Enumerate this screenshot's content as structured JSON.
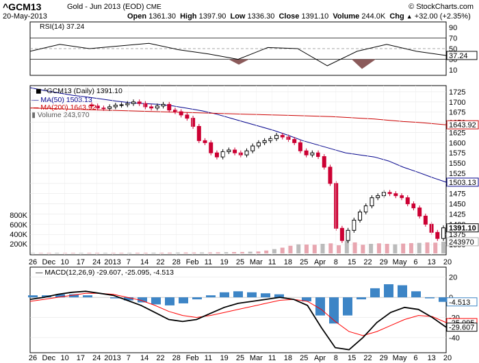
{
  "header": {
    "symbol": "^GCM13",
    "description": "Gold - Jun 2013 (EOD)",
    "exchange": "CME",
    "copyright": "© StockCharts.com",
    "date": "20-May-2013",
    "open_label": "Open",
    "open": "1361.30",
    "high_label": "High",
    "high": "1397.90",
    "low_label": "Low",
    "low": "1336.30",
    "close_label": "Close",
    "close": "1391.10",
    "volume_label": "Volume",
    "volume": "244.0K",
    "chg_label": "Chg",
    "chg": "+32.00 (+2.35%)",
    "chg_direction": "up"
  },
  "colors": {
    "up_candle": "#000000",
    "down_candle": "#cc0033",
    "ma50": "#00008b",
    "ma200": "#cc0000",
    "rsi_fill": "#8b5a5a",
    "macd_line": "#000000",
    "signal_line": "#ff0000",
    "histogram": "#3d85c6",
    "volume_up": "#bbbbbb",
    "volume_down": "#e8a6b0"
  },
  "chart_data": [
    {
      "type": "line",
      "panel": "rsi",
      "title": "RSI(14) 37.24",
      "levels": [
        10,
        30,
        50,
        70,
        90
      ],
      "ylim": [
        0,
        100
      ],
      "last_value_label": "37.24",
      "x": [
        "Nov 26",
        "Dec 10",
        "Dec 24",
        "Jan 14",
        "Jan 28",
        "Feb 11",
        "Feb 25",
        "Mar 11",
        "Mar 25",
        "Apr 8",
        "Apr 15",
        "Apr 22",
        "May 6",
        "May 13",
        "May 20"
      ],
      "values": [
        45,
        58,
        50,
        55,
        60,
        48,
        40,
        30,
        52,
        50,
        18,
        45,
        58,
        45,
        37.24
      ]
    },
    {
      "type": "candlestick",
      "panel": "price",
      "title": "^GCM13 (Daily) 1391.10",
      "ylim": [
        1325,
        1740
      ],
      "y_ticks": [
        1325,
        1350,
        1375,
        1400,
        1425,
        1450,
        1475,
        1500,
        1525,
        1550,
        1575,
        1600,
        1625,
        1650,
        1675,
        1700,
        1725
      ],
      "x_tick_labels": [
        "26",
        "Dec",
        "10",
        "17",
        "24",
        "2013",
        "7",
        "14",
        "22",
        "28",
        "Feb",
        "11",
        "19",
        "25",
        "Mar",
        "11",
        "18",
        "25",
        "Apr",
        "8",
        "15",
        "22",
        "29",
        "May",
        "6",
        "13",
        "20"
      ],
      "close_label": "1391.10",
      "ohlc_close": [
        1690,
        1685,
        1684,
        1688,
        1692,
        1693,
        1696,
        1700,
        1696,
        1688,
        1685,
        1690,
        1694,
        1680,
        1676,
        1668,
        1660,
        1640,
        1605,
        1600,
        1575,
        1565,
        1578,
        1582,
        1575,
        1570,
        1580,
        1592,
        1600,
        1605,
        1610,
        1618,
        1614,
        1608,
        1600,
        1580,
        1570,
        1575,
        1566,
        1540,
        1500,
        1390,
        1360,
        1385,
        1410,
        1430,
        1445,
        1465,
        1470,
        1478,
        1475,
        1470,
        1465,
        1450,
        1440,
        1420,
        1400,
        1380,
        1365,
        1391.1
      ],
      "series": [
        {
          "name": "MA(50) 1503.13",
          "last_label": "1503.13",
          "values": [
            1735,
            1728,
            1722,
            1716,
            1712,
            1707,
            1702,
            1698,
            1696,
            1694,
            1690,
            1684,
            1678,
            1670,
            1660,
            1650,
            1640,
            1630,
            1618,
            1605,
            1595,
            1585,
            1575,
            1570,
            1565,
            1555,
            1540,
            1528,
            1515,
            1503.13
          ]
        },
        {
          "name": "MA(200) 1643.92",
          "last_label": "1643.92",
          "values": [
            1685,
            1684,
            1683,
            1682,
            1681,
            1680,
            1679,
            1678,
            1677,
            1676,
            1675,
            1674,
            1673,
            1672,
            1671,
            1670,
            1669,
            1668,
            1667,
            1666,
            1665,
            1664,
            1662,
            1660,
            1658,
            1655,
            1652,
            1650,
            1647,
            1643.92
          ]
        }
      ]
    },
    {
      "type": "bar",
      "panel": "volume",
      "title": "Volume 243,970",
      "y_ticks_labels": [
        "200K",
        "400K",
        "600K",
        "800K"
      ],
      "y_ticks": [
        200000,
        400000,
        600000,
        800000
      ],
      "ylim": [
        0,
        1000000
      ],
      "last_label": "243970",
      "values": [
        10000,
        10000,
        12000,
        12000,
        10000,
        11000,
        12000,
        12000,
        13000,
        12000,
        12000,
        12000,
        13000,
        14000,
        14000,
        15000,
        15000,
        16000,
        18000,
        18000,
        18000,
        19000,
        20000,
        22000,
        25000,
        28000,
        30000,
        35000,
        40000,
        60000,
        90000,
        120000,
        160000,
        190000,
        185000,
        180000,
        200000,
        210000,
        170000,
        260000,
        230000,
        180000,
        200000,
        210000,
        200000,
        190000,
        205000,
        215000,
        220000,
        230000,
        225000,
        243970
      ]
    },
    {
      "type": "line",
      "panel": "macd",
      "title": "MACD(12,26,9) -29.607, -25.095, -4.513",
      "y_ticks": [
        20,
        0,
        -20,
        -40
      ],
      "ylim": [
        -55,
        30
      ],
      "series": [
        {
          "name": "MACD(12,26,9)",
          "last_label": "-29.607",
          "values": [
            -2,
            0,
            3,
            5,
            6,
            4,
            2,
            -3,
            -8,
            -15,
            -22,
            -24,
            -22,
            -16,
            -10,
            -6,
            -4,
            -2,
            0,
            -2,
            -8,
            -30,
            -50,
            -52,
            -40,
            -25,
            -15,
            -10,
            -12,
            -20,
            -29.607
          ]
        },
        {
          "name": "Signal",
          "last_label": "-25.095",
          "values": [
            -4,
            -2,
            0,
            2,
            4,
            4,
            3,
            0,
            -3,
            -8,
            -14,
            -18,
            -20,
            -18,
            -15,
            -12,
            -9,
            -6,
            -3,
            -2,
            -4,
            -12,
            -24,
            -34,
            -38,
            -34,
            -28,
            -22,
            -18,
            -19,
            -25.095
          ]
        },
        {
          "name": "Histogram",
          "last_label": "-4.513",
          "values": [
            2,
            2,
            3,
            3,
            2,
            0,
            -1,
            -3,
            -5,
            -7,
            -8,
            -6,
            -2,
            2,
            5,
            6,
            5,
            4,
            3,
            0,
            -4,
            -18,
            -26,
            -18,
            -2,
            9,
            13,
            12,
            6,
            -1,
            -4.513
          ]
        }
      ]
    }
  ],
  "x_axis_labels": [
    "26",
    "Dec",
    "10",
    "17",
    "24",
    "2013",
    "7",
    "14",
    "22",
    "28",
    "Feb",
    "11",
    "19",
    "25",
    "Mar",
    "11",
    "18",
    "25",
    "Apr",
    "8",
    "15",
    "22",
    "29",
    "May",
    "6",
    "13",
    "20"
  ]
}
